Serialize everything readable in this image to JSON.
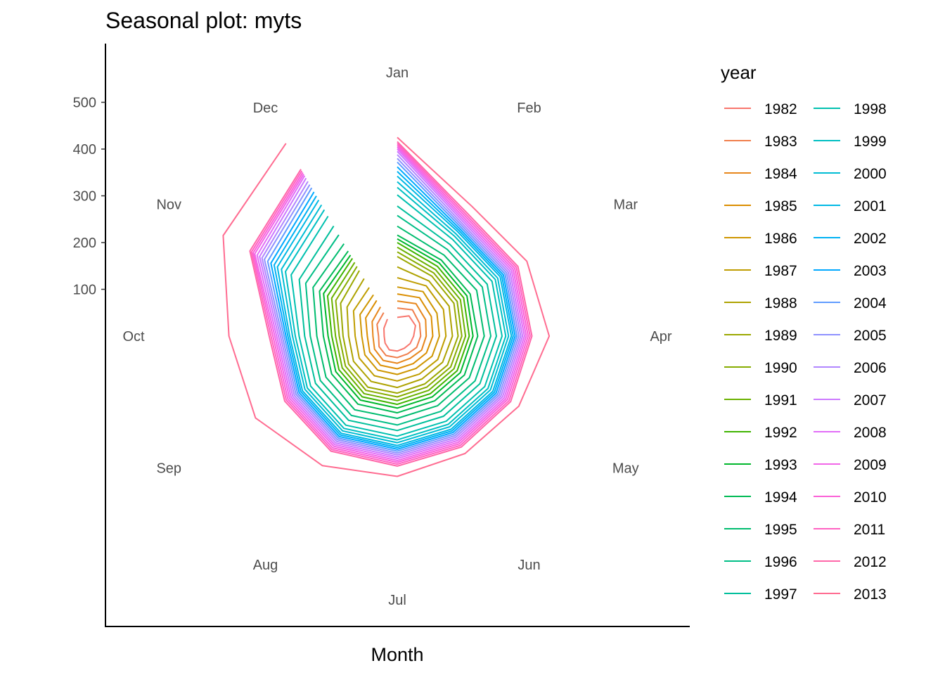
{
  "chart_data": {
    "type": "line",
    "coord": "polar",
    "title": "Seasonal plot: myts",
    "xlabel": "Month",
    "ylabel": "",
    "categories": [
      "Jan",
      "Feb",
      "Mar",
      "Apr",
      "May",
      "Jun",
      "Jul",
      "Aug",
      "Sep",
      "Oct",
      "Nov",
      "Dec"
    ],
    "yticks": [
      100,
      200,
      300,
      400,
      500
    ],
    "ylim": [
      0,
      620
    ],
    "legend": {
      "title": "year",
      "position": "right",
      "columns": 2
    },
    "series": [
      {
        "name": "1982",
        "color": "#F8766D",
        "values": [
          40,
          50,
          45,
          35,
          32,
          30,
          32,
          34,
          30,
          28,
          33,
          42
        ]
      },
      {
        "name": "1983",
        "color": "#F07E4C",
        "values": [
          60,
          65,
          55,
          50,
          48,
          44,
          46,
          48,
          45,
          40,
          50,
          58
        ]
      },
      {
        "name": "1984",
        "color": "#E7861B",
        "values": [
          75,
          80,
          70,
          62,
          60,
          55,
          58,
          60,
          56,
          52,
          62,
          72
        ]
      },
      {
        "name": "1985",
        "color": "#DB8E00",
        "values": [
          90,
          95,
          84,
          76,
          72,
          68,
          70,
          72,
          68,
          64,
          78,
          88
        ]
      },
      {
        "name": "1986",
        "color": "#CE9600",
        "values": [
          105,
          110,
          98,
          90,
          86,
          80,
          82,
          84,
          80,
          76,
          92,
          102
        ]
      },
      {
        "name": "1987",
        "color": "#BF9D00",
        "values": [
          125,
          124,
          114,
          104,
          100,
          94,
          96,
          98,
          94,
          90,
          108,
          120
        ]
      },
      {
        "name": "1988",
        "color": "#AEA200",
        "values": [
          148,
          136,
          128,
          118,
          112,
          106,
          110,
          112,
          108,
          104,
          124,
          142
        ]
      },
      {
        "name": "1989",
        "color": "#9BA800",
        "values": [
          170,
          148,
          140,
          130,
          124,
          118,
          122,
          126,
          120,
          116,
          140,
          162
        ]
      },
      {
        "name": "1990",
        "color": "#86AC00",
        "values": [
          180,
          156,
          148,
          138,
          132,
          126,
          130,
          134,
          128,
          124,
          152,
          172
        ]
      },
      {
        "name": "1991",
        "color": "#6AB100",
        "values": [
          190,
          164,
          156,
          146,
          140,
          134,
          138,
          142,
          136,
          132,
          162,
          182
        ]
      },
      {
        "name": "1992",
        "color": "#3FB400",
        "values": [
          200,
          172,
          164,
          154,
          148,
          142,
          146,
          150,
          144,
          140,
          172,
          192
        ]
      },
      {
        "name": "1993",
        "color": "#00B72C",
        "values": [
          208,
          180,
          172,
          162,
          156,
          150,
          154,
          158,
          152,
          148,
          182,
          200
        ]
      },
      {
        "name": "1994",
        "color": "#00BA54",
        "values": [
          216,
          188,
          180,
          172,
          166,
          160,
          164,
          168,
          162,
          158,
          192,
          210
        ]
      },
      {
        "name": "1995",
        "color": "#00BC6F",
        "values": [
          235,
          200,
          196,
          186,
          178,
          172,
          176,
          182,
          176,
          172,
          208,
          228
        ]
      },
      {
        "name": "1996",
        "color": "#00BE86",
        "values": [
          258,
          214,
          210,
          200,
          192,
          186,
          190,
          196,
          190,
          186,
          226,
          250
        ]
      },
      {
        "name": "1997",
        "color": "#00BF9B",
        "values": [
          278,
          226,
          222,
          212,
          204,
          198,
          202,
          208,
          202,
          198,
          242,
          272
        ]
      },
      {
        "name": "1998",
        "color": "#00C0AF",
        "values": [
          302,
          238,
          234,
          224,
          216,
          210,
          214,
          220,
          214,
          210,
          262,
          296
        ]
      },
      {
        "name": "1999",
        "color": "#00BFC2",
        "values": [
          318,
          246,
          242,
          232,
          224,
          218,
          222,
          228,
          222,
          218,
          276,
          312
        ]
      },
      {
        "name": "2000",
        "color": "#00BCD4",
        "values": [
          330,
          252,
          248,
          238,
          230,
          224,
          228,
          234,
          228,
          224,
          286,
          324
        ]
      },
      {
        "name": "2001",
        "color": "#00B8E4",
        "values": [
          342,
          258,
          254,
          244,
          236,
          230,
          234,
          240,
          234,
          230,
          296,
          336
        ]
      },
      {
        "name": "2002",
        "color": "#00B1F3",
        "values": [
          352,
          262,
          258,
          248,
          240,
          234,
          238,
          244,
          238,
          234,
          304,
          346
        ]
      },
      {
        "name": "2003",
        "color": "#00A9FF",
        "values": [
          362,
          266,
          262,
          252,
          244,
          238,
          242,
          248,
          242,
          238,
          312,
          356
        ]
      },
      {
        "name": "2004",
        "color": "#619CFF",
        "values": [
          372,
          270,
          266,
          256,
          248,
          242,
          246,
          252,
          246,
          242,
          320,
          366
        ]
      },
      {
        "name": "2005",
        "color": "#8F91FF",
        "values": [
          380,
          274,
          270,
          260,
          252,
          246,
          250,
          256,
          250,
          246,
          328,
          374
        ]
      },
      {
        "name": "2006",
        "color": "#B186FF",
        "values": [
          388,
          278,
          274,
          264,
          256,
          250,
          254,
          260,
          254,
          250,
          334,
          382
        ]
      },
      {
        "name": "2007",
        "color": "#CC79FF",
        "values": [
          395,
          282,
          278,
          268,
          260,
          254,
          258,
          264,
          258,
          254,
          340,
          390
        ]
      },
      {
        "name": "2008",
        "color": "#E26EF7",
        "values": [
          400,
          286,
          282,
          272,
          264,
          258,
          262,
          268,
          262,
          258,
          346,
          396
        ]
      },
      {
        "name": "2009",
        "color": "#F166E8",
        "values": [
          404,
          290,
          286,
          276,
          268,
          262,
          266,
          272,
          266,
          262,
          352,
          400
        ]
      },
      {
        "name": "2010",
        "color": "#FB61D7",
        "values": [
          408,
          294,
          290,
          280,
          272,
          266,
          270,
          276,
          270,
          266,
          356,
          404
        ]
      },
      {
        "name": "2011",
        "color": "#FF62C2",
        "values": [
          412,
          298,
          294,
          284,
          276,
          270,
          274,
          280,
          274,
          270,
          360,
          408
        ]
      },
      {
        "name": "2012",
        "color": "#FF67A9",
        "values": [
          416,
          302,
          298,
          288,
          280,
          274,
          278,
          284,
          278,
          274,
          364,
          412
        ]
      },
      {
        "name": "2013",
        "color": "#FF6C91",
        "values": [
          425,
          320,
          320,
          325,
          300,
          290,
          300,
          320,
          350,
          360,
          430,
          476
        ]
      }
    ]
  }
}
